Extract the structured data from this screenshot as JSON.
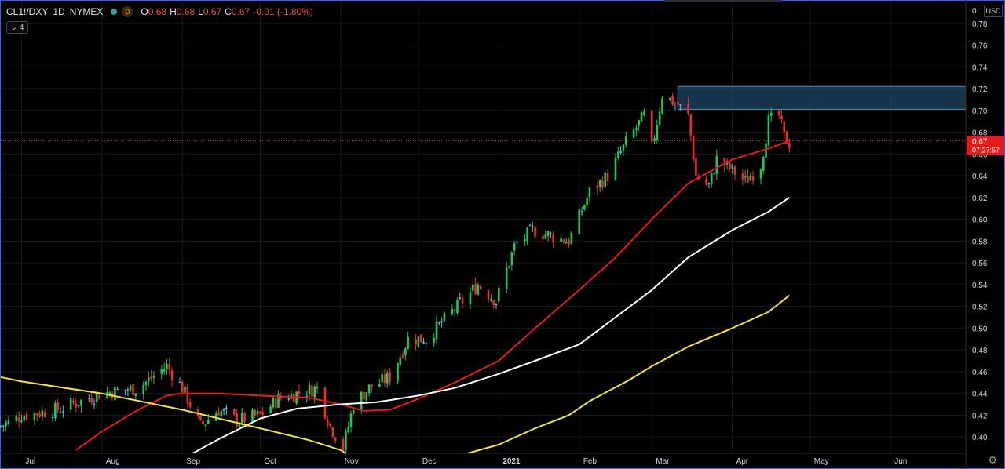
{
  "header": {
    "symbol": "CL1!/DXY",
    "interval": "1D",
    "exchange": "NYMEX",
    "status_badge": "D",
    "ohlc": [
      {
        "label": "O",
        "value": "0.68"
      },
      {
        "label": "H",
        "value": "0.68"
      },
      {
        "label": "L",
        "value": "0.67"
      },
      {
        "label": "C",
        "value": "0.67"
      }
    ],
    "change": "-0.01 (-1.80%)",
    "indicators_count": "4"
  },
  "currency": "USD",
  "price_axis": {
    "ticks": [
      "0.40",
      "0.42",
      "0.44",
      "0.46",
      "0.48",
      "0.50",
      "0.52",
      "0.54",
      "0.56",
      "0.58",
      "0.60",
      "0.62",
      "0.64",
      "0.66",
      "0.68",
      "0.70",
      "0.72",
      "0.74",
      "0.76",
      "0.78",
      "0"
    ],
    "last_price": "0.67",
    "countdown": "07:27:57"
  },
  "colors": {
    "up": "#22c55e",
    "down": "#ef2b2b",
    "doji": "#5bc0de",
    "ma_short": "#e31b1b",
    "ma_mid": "#ffffff",
    "ma_long": "#f4e04d",
    "zone": "#2a5f88",
    "border": "#2962ff"
  },
  "chart_data": {
    "type": "candlestick",
    "title": "",
    "xlabel": "",
    "ylabel": "",
    "ylim": [
      0.385,
      0.8
    ],
    "x_range": [
      "2020-06-23",
      "2021-06-30"
    ],
    "x_ticks": [
      {
        "label": "Jul",
        "date": "2020-07-01"
      },
      {
        "label": "Aug",
        "date": "2020-08-01"
      },
      {
        "label": "Sep",
        "date": "2020-09-01"
      },
      {
        "label": "Oct",
        "date": "2020-10-01"
      },
      {
        "label": "Nov",
        "date": "2020-11-01"
      },
      {
        "label": "Dec",
        "date": "2020-12-01"
      },
      {
        "label": "2021",
        "date": "2021-01-01"
      },
      {
        "label": "Feb",
        "date": "2021-02-01"
      },
      {
        "label": "Mar",
        "date": "2021-03-01"
      },
      {
        "label": "Apr",
        "date": "2021-04-01"
      },
      {
        "label": "May",
        "date": "2021-05-01"
      },
      {
        "label": "Jun",
        "date": "2021-06-01"
      }
    ],
    "last_date": "2021-04-23",
    "close_path": [
      [
        "2020-06-23",
        0.41
      ],
      [
        "2020-07-01",
        0.42
      ],
      [
        "2020-07-15",
        0.425
      ],
      [
        "2020-08-01",
        0.44
      ],
      [
        "2020-08-15",
        0.445
      ],
      [
        "2020-08-26",
        0.465
      ],
      [
        "2020-09-01",
        0.445
      ],
      [
        "2020-09-08",
        0.41
      ],
      [
        "2020-09-15",
        0.425
      ],
      [
        "2020-09-22",
        0.415
      ],
      [
        "2020-10-01",
        0.42
      ],
      [
        "2020-10-08",
        0.435
      ],
      [
        "2020-10-15",
        0.44
      ],
      [
        "2020-10-23",
        0.445
      ],
      [
        "2020-10-28",
        0.41
      ],
      [
        "2020-11-02",
        0.39
      ],
      [
        "2020-11-06",
        0.43
      ],
      [
        "2020-11-12",
        0.445
      ],
      [
        "2020-11-20",
        0.455
      ],
      [
        "2020-11-27",
        0.49
      ],
      [
        "2020-12-04",
        0.49
      ],
      [
        "2020-12-10",
        0.505
      ],
      [
        "2020-12-18",
        0.525
      ],
      [
        "2020-12-24",
        0.54
      ],
      [
        "2020-12-31",
        0.525
      ],
      [
        "2021-01-07",
        0.575
      ],
      [
        "2021-01-14",
        0.59
      ],
      [
        "2021-01-21",
        0.585
      ],
      [
        "2021-01-28",
        0.58
      ],
      [
        "2021-02-05",
        0.625
      ],
      [
        "2021-02-12",
        0.64
      ],
      [
        "2021-02-19",
        0.67
      ],
      [
        "2021-02-26",
        0.695
      ],
      [
        "2021-03-01",
        0.665
      ],
      [
        "2021-03-05",
        0.715
      ],
      [
        "2021-03-11",
        0.705
      ],
      [
        "2021-03-15",
        0.695
      ],
      [
        "2021-03-18",
        0.64
      ],
      [
        "2021-03-23",
        0.63
      ],
      [
        "2021-03-26",
        0.655
      ],
      [
        "2021-04-01",
        0.645
      ],
      [
        "2021-04-06",
        0.635
      ],
      [
        "2021-04-12",
        0.65
      ],
      [
        "2021-04-15",
        0.69
      ],
      [
        "2021-04-19",
        0.695
      ],
      [
        "2021-04-21",
        0.675
      ],
      [
        "2021-04-23",
        0.67
      ]
    ],
    "series": [
      {
        "values": [
          [
            "2020-07-22",
            0.388
          ],
          [
            "2020-08-01",
            0.405
          ],
          [
            "2020-08-15",
            0.425
          ],
          [
            "2020-08-26",
            0.438
          ],
          [
            "2020-09-01",
            0.44
          ],
          [
            "2020-09-15",
            0.44
          ],
          [
            "2020-10-01",
            0.438
          ],
          [
            "2020-10-20",
            0.436
          ],
          [
            "2020-11-01",
            0.43
          ],
          [
            "2020-11-10",
            0.424
          ],
          [
            "2020-11-20",
            0.425
          ],
          [
            "2020-12-01",
            0.435
          ],
          [
            "2020-12-15",
            0.45
          ],
          [
            "2021-01-01",
            0.47
          ],
          [
            "2021-01-15",
            0.5
          ],
          [
            "2021-02-01",
            0.535
          ],
          [
            "2021-02-15",
            0.565
          ],
          [
            "2021-03-01",
            0.6
          ],
          [
            "2021-03-15",
            0.633
          ],
          [
            "2021-04-01",
            0.655
          ],
          [
            "2021-04-15",
            0.665
          ],
          [
            "2021-04-23",
            0.672
          ]
        ]
      },
      {
        "values": [
          [
            "2020-09-05",
            0.385
          ],
          [
            "2020-09-15",
            0.398
          ],
          [
            "2020-10-01",
            0.417
          ],
          [
            "2020-10-15",
            0.426
          ],
          [
            "2020-11-01",
            0.43
          ],
          [
            "2020-11-15",
            0.432
          ],
          [
            "2020-12-01",
            0.438
          ],
          [
            "2020-12-15",
            0.445
          ],
          [
            "2021-01-01",
            0.458
          ],
          [
            "2021-01-15",
            0.47
          ],
          [
            "2021-02-01",
            0.485
          ],
          [
            "2021-02-15",
            0.51
          ],
          [
            "2021-03-01",
            0.535
          ],
          [
            "2021-03-15",
            0.565
          ],
          [
            "2021-04-01",
            0.59
          ],
          [
            "2021-04-15",
            0.607
          ],
          [
            "2021-04-23",
            0.62
          ]
        ]
      },
      {
        "values": [
          [
            "2020-06-23",
            0.455
          ],
          [
            "2020-07-01",
            0.451
          ],
          [
            "2020-08-01",
            0.44
          ],
          [
            "2020-09-01",
            0.425
          ],
          [
            "2020-10-01",
            0.408
          ],
          [
            "2020-10-20",
            0.397
          ],
          [
            "2020-11-01",
            0.388
          ],
          [
            "2020-11-03",
            0.385
          ]
        ]
      },
      {
        "values": [
          [
            "2020-12-20",
            0.385
          ],
          [
            "2021-01-01",
            0.393
          ],
          [
            "2021-01-15",
            0.408
          ],
          [
            "2021-01-28",
            0.42
          ],
          [
            "2021-02-05",
            0.433
          ],
          [
            "2021-02-20",
            0.452
          ],
          [
            "2021-03-01",
            0.465
          ],
          [
            "2021-03-15",
            0.483
          ],
          [
            "2021-04-01",
            0.5
          ],
          [
            "2021-04-15",
            0.515
          ],
          [
            "2021-04-23",
            0.53
          ]
        ]
      }
    ],
    "zone": {
      "from_date": "2021-03-11",
      "y_low": 0.701,
      "y_high": 0.722
    },
    "last_price_line": 0.672
  }
}
